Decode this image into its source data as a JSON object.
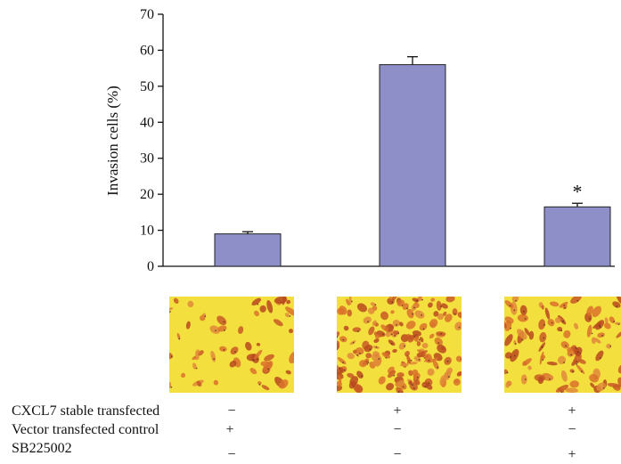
{
  "chart_data": {
    "type": "bar",
    "ylabel": "Invasion cells (%)",
    "ylim": [
      0,
      70
    ],
    "yticks": [
      0,
      10,
      20,
      30,
      40,
      50,
      60,
      70
    ],
    "grid": false,
    "legend": "none",
    "bar_color": "#8e8fc8",
    "categories": [
      "",
      "",
      ""
    ],
    "values": [
      9,
      56,
      16.5
    ],
    "errors": [
      0.6,
      2.2,
      1.0
    ],
    "annotations": [
      "",
      "",
      "*"
    ]
  },
  "micrographs": [
    {
      "name": "micrograph-1"
    },
    {
      "name": "micrograph-2"
    },
    {
      "name": "micrograph-3"
    }
  ],
  "conditions": {
    "row1": {
      "label": "CXCL7 stable transfected",
      "marks": [
        "−",
        "+",
        "+"
      ]
    },
    "row2": {
      "label": "Vector transfected control",
      "marks": [
        "+",
        "−",
        "−"
      ]
    },
    "row3": {
      "label": "SB225002",
      "marks": [
        "−",
        "−",
        "+"
      ]
    }
  }
}
